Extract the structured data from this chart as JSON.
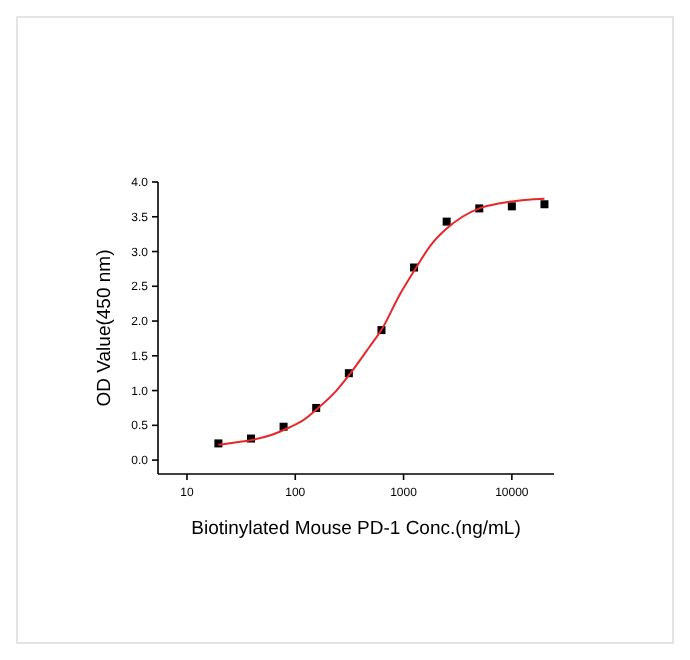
{
  "chart_data": {
    "type": "scatter",
    "xlabel": "Biotinylated Mouse PD-1 Conc.(ng/mL)",
    "ylabel": "OD Value(450 nm)",
    "log": "x",
    "marker": "square",
    "grid": false,
    "xlim": [
      5.4,
      24500
    ],
    "xticks": [
      10,
      100,
      1000,
      10000
    ],
    "ylim": [
      -0.2,
      4.0
    ],
    "yticks": [
      {
        "value": 0,
        "label": "0.0"
      },
      {
        "value": 0.5,
        "label": "0.5"
      },
      {
        "value": 1,
        "label": "1.0"
      },
      {
        "value": 1.5,
        "label": "1.5"
      },
      {
        "value": 2,
        "label": "2.0"
      },
      {
        "value": 2.5,
        "label": "2.5"
      },
      {
        "value": 3,
        "label": "3.0"
      },
      {
        "value": 3.5,
        "label": "3.5"
      },
      {
        "value": 4,
        "label": "4.0"
      }
    ],
    "series": [
      {
        "color": "#000000",
        "x": [
          19.5,
          39,
          78,
          156,
          312.5,
          625,
          1250,
          2500,
          5000,
          10000,
          20000
        ],
        "values": [
          0.24,
          0.31,
          0.48,
          0.75,
          1.25,
          1.87,
          2.77,
          3.43,
          3.62,
          3.65,
          3.68
        ]
      },
      {
        "type": "line",
        "color": "#e8262a",
        "marker": "none",
        "x": [
          19.5,
          30,
          40,
          60,
          80,
          120,
          160,
          240,
          320,
          480,
          640,
          900,
          1250,
          1800,
          2500,
          3500,
          5000,
          7500,
          10000,
          15000,
          20000
        ],
        "values": [
          0.22,
          0.26,
          0.29,
          0.36,
          0.44,
          0.58,
          0.74,
          1.0,
          1.24,
          1.62,
          1.9,
          2.35,
          2.72,
          3.1,
          3.33,
          3.5,
          3.62,
          3.69,
          3.72,
          3.75,
          3.76
        ]
      }
    ]
  }
}
